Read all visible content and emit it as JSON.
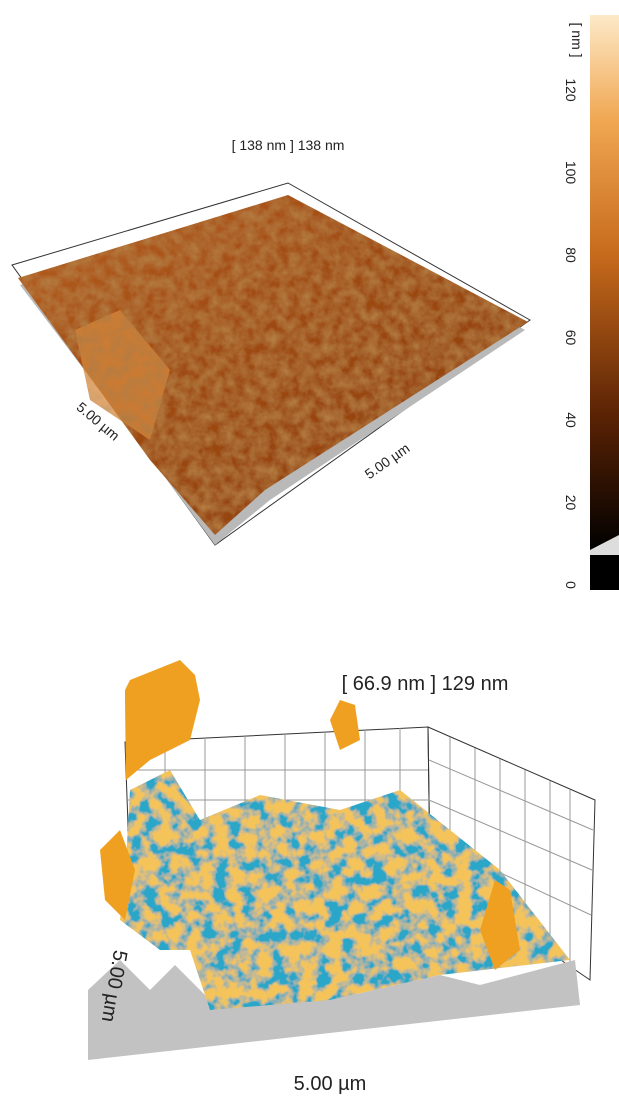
{
  "top": {
    "height_label": "[ 138 nm ] 138 nm",
    "x_label": "5.00 µm",
    "y_label": "5.00 µm",
    "colorbar": {
      "unit": "[ nm ]",
      "ticks": [
        "120",
        "100",
        "80",
        "60",
        "40",
        "20",
        "0"
      ]
    }
  },
  "bottom": {
    "height_label": "[ 66.9 nm ] 129 nm",
    "x_label": "5.00 µm",
    "y_label": "5.00 µm"
  }
}
